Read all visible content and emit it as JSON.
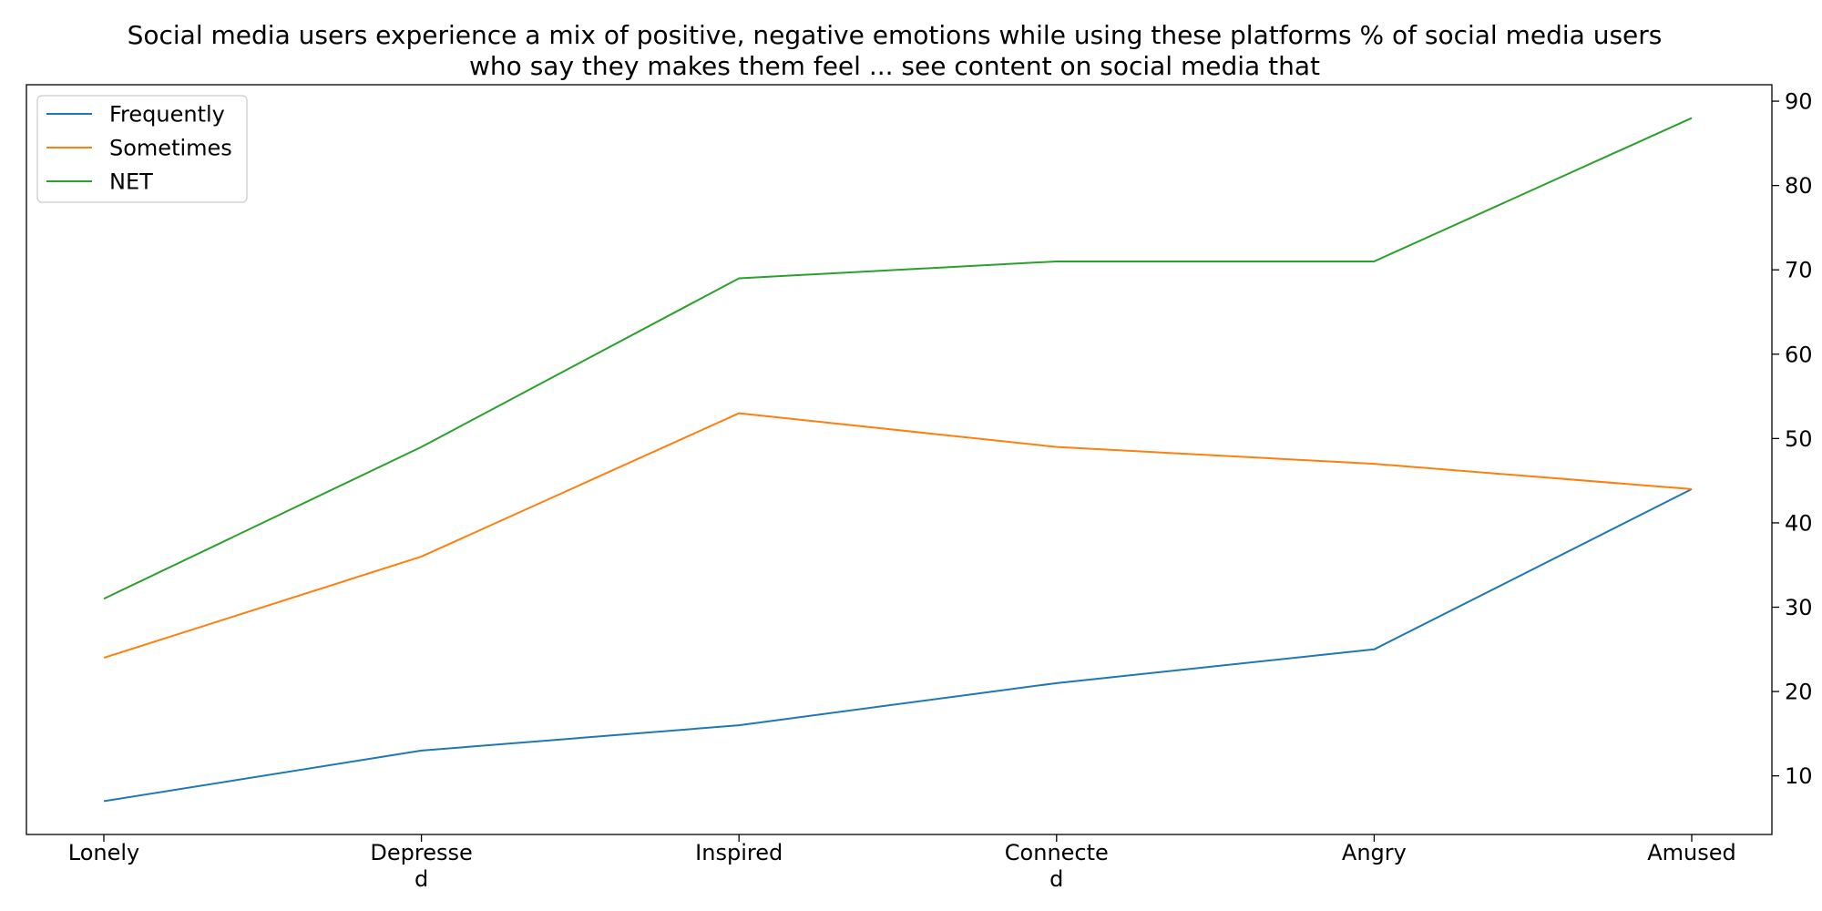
{
  "chart_data": {
    "type": "line",
    "title": "Social media users experience a mix of positive, negative emotions while using these platforms % of social media users who say they makes them feel ... see content on social media that",
    "title_lines": [
      "Social media users experience a mix of positive, negative emotions while using these platforms % of social media users",
      "who say they makes them feel ... see content on social media that"
    ],
    "xlabel": "",
    "ylabel": "",
    "categories": [
      "Lonely",
      "Depressed",
      "Inspired",
      "Connected",
      "Angry",
      "Amused"
    ],
    "category_label_lines": [
      [
        "Lonely"
      ],
      [
        "Depresse",
        "d"
      ],
      [
        "Inspired"
      ],
      [
        "Connecte",
        "d"
      ],
      [
        "Angry"
      ],
      [
        "Amused"
      ]
    ],
    "series": [
      {
        "name": "Frequently",
        "color": "#1f77b4",
        "values": [
          7,
          13,
          16,
          21,
          25,
          44
        ]
      },
      {
        "name": "Sometimes",
        "color": "#ff7f0e",
        "values": [
          24,
          36,
          53,
          49,
          47,
          44
        ]
      },
      {
        "name": "NET",
        "color": "#2ca02c",
        "values": [
          31,
          49,
          69,
          71,
          71,
          88
        ]
      }
    ],
    "yaxis_side": "right",
    "yticks": [
      10,
      20,
      30,
      40,
      50,
      60,
      70,
      80,
      90
    ],
    "yticks_text": [
      "10",
      "20",
      "30",
      "40",
      "50",
      "60",
      "70",
      "80",
      "90"
    ],
    "ylim": [
      3.05,
      91.95
    ],
    "grid": false,
    "legend_position": "top-left"
  }
}
